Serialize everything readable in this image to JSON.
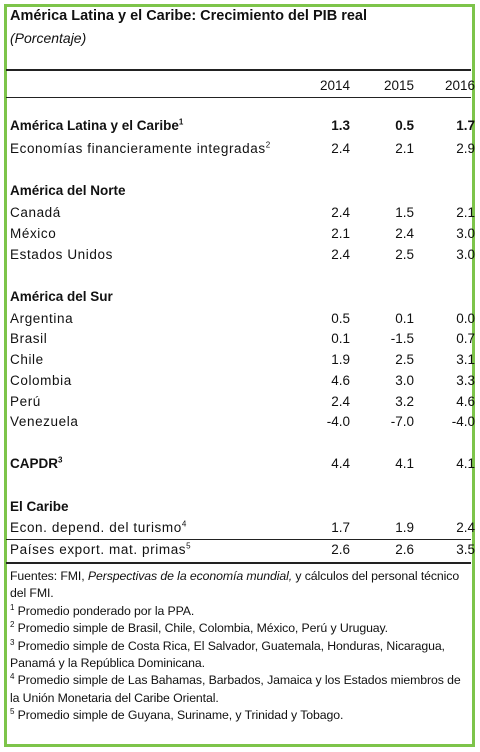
{
  "title": "América Latina y el Caribe: Crecimiento del PIB real",
  "subtitle": "(Porcentaje)",
  "years": [
    "2014",
    "2015",
    "2016"
  ],
  "summary": {
    "region": {
      "label": "América Latina y el Caribe",
      "sup": "1",
      "v": [
        "1.3",
        "0.5",
        "1.7"
      ]
    },
    "integrated": {
      "label": "Economías financieramente integradas",
      "sup": "2",
      "v": [
        "2.4",
        "2.1",
        "2.9"
      ]
    }
  },
  "north": {
    "title": "América del Norte",
    "rows": [
      {
        "label": "Canadá",
        "v": [
          "2.4",
          "1.5",
          "2.1"
        ]
      },
      {
        "label": "México",
        "v": [
          "2.1",
          "2.4",
          "3.0"
        ]
      },
      {
        "label": "Estados Unidos",
        "v": [
          "2.4",
          "2.5",
          "3.0"
        ]
      }
    ]
  },
  "south": {
    "title": "América del Sur",
    "rows": [
      {
        "label": "Argentina",
        "v": [
          "0.5",
          "0.1",
          "0.0"
        ]
      },
      {
        "label": "Brasil",
        "v": [
          "0.1",
          "-1.5",
          "0.7"
        ]
      },
      {
        "label": "Chile",
        "v": [
          "1.9",
          "2.5",
          "3.1"
        ]
      },
      {
        "label": "Colombia",
        "v": [
          "4.6",
          "3.0",
          "3.3"
        ]
      },
      {
        "label": "Perú",
        "v": [
          "2.4",
          "3.2",
          "4.6"
        ]
      },
      {
        "label": "Venezuela",
        "v": [
          "-4.0",
          "-7.0",
          "-4.0"
        ]
      }
    ]
  },
  "capdr": {
    "label": "CAPDR",
    "sup": "3",
    "v": [
      "4.4",
      "4.1",
      "4.1"
    ]
  },
  "caribbean": {
    "title": "El Caribe",
    "rows": [
      {
        "label": "Econ. depend. del turismo",
        "sup": "4",
        "v": [
          "1.7",
          "1.9",
          "2.4"
        ]
      },
      {
        "label": "Países export. mat. primas",
        "sup": "5",
        "v": [
          "2.6",
          "2.6",
          "3.5"
        ]
      }
    ]
  },
  "notes": {
    "sources_prefix": "Fuentes: FMI, ",
    "sources_italic": "Perspectivas de la economía mundial,",
    "sources_suffix": " y cálculos del personal técnico del FMI.",
    "n1": {
      "num": "1",
      "text": " Promedio ponderado por la PPA."
    },
    "n2": {
      "num": "2",
      "text": " Promedio simple de Brasil, Chile, Colombia, México, Perú y Uruguay."
    },
    "n3": {
      "num": "3",
      "text": " Promedio simple de Costa Rica, El Salvador, Guatemala, Honduras, Nicaragua, Panamá y la República Dominicana."
    },
    "n4": {
      "num": "4",
      "text": " Promedio simple de Las Bahamas, Barbados, Jamaica y los Estados miembros de la Unión Monetaria del Caribe Oriental."
    },
    "n5": {
      "num": "5",
      "text": " Promedio simple de Guyana, Suriname, y Trinidad y Tobago."
    }
  },
  "colors": {
    "frame": "#7dc44a"
  }
}
